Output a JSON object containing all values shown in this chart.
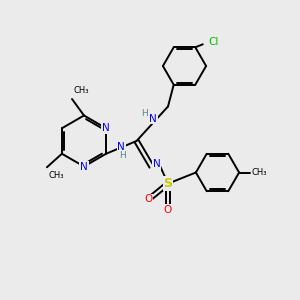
{
  "background_color": "#ebebeb",
  "bond_color": "#000000",
  "nitrogen_color": "#0000ff",
  "oxygen_color": "#ff0000",
  "sulfur_color": "#cccc00",
  "chlorine_color": "#00bb00",
  "carbon_color": "#000000",
  "h_color": "#558888",
  "figsize": [
    3.0,
    3.0
  ],
  "dpi": 100,
  "xlim": [
    0,
    10
  ],
  "ylim": [
    0,
    10
  ]
}
